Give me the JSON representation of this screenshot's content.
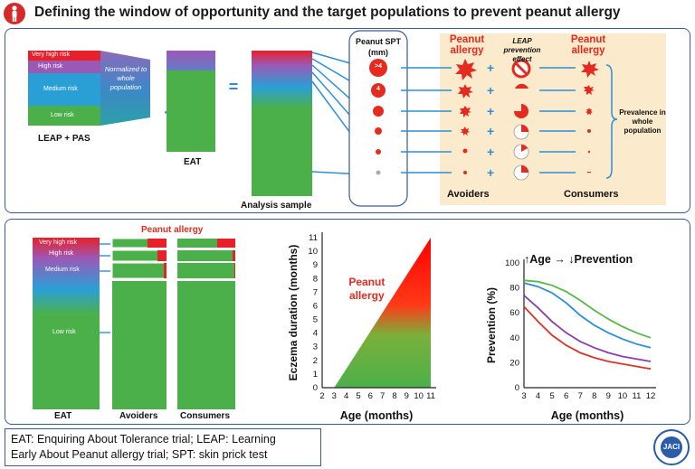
{
  "title": "Defining the window of opportunity and the target populations to prevent peanut allergy",
  "top_panel": {
    "stack_labels": [
      "Very high risk",
      "High risk",
      "Medium risk",
      "Low risk"
    ],
    "normalized": "Normalized to whole population",
    "leap_pas": "LEAP + PAS",
    "eat": "EAT",
    "analysis": "Analysis sample",
    "plus": "+",
    "equals": "=",
    "spt_title": "Peanut SPT (mm)",
    "spt_top": ">4",
    "spt_second": "4",
    "peanut_allergy": "Peanut allergy",
    "leap_effect": "LEAP prevention effect",
    "avoiders": "Avoiders",
    "consumers": "Consumers",
    "prevalence": "Prevalence in whole population"
  },
  "bottom_panel": {
    "peanut_allergy": "Peanut allergy",
    "stack_labels": [
      "Very high risk",
      "High risk",
      "Medium risk",
      "Low risk"
    ],
    "eat": "EAT",
    "avoiders": "Avoiders",
    "consumers": "Consumers",
    "triangle_label": "Peanut allergy",
    "prevention_title": "↑Age → ↓Prevention"
  },
  "chart_data": [
    {
      "type": "area",
      "x": [
        2,
        3,
        4,
        5,
        6,
        7,
        8,
        9,
        10,
        11
      ],
      "xlabel": "Age (months)",
      "ylabel": "Eczema duration (months)",
      "xticks": [
        "2",
        "3",
        "4",
        "5",
        "6",
        "7",
        "8",
        "9",
        "10",
        "11"
      ],
      "yticks": [
        "0",
        "1",
        "2",
        "3",
        "4",
        "5",
        "6",
        "7",
        "8",
        "9",
        "10",
        "11"
      ],
      "xlim": [
        2,
        11
      ],
      "ylim": [
        0,
        11
      ],
      "region": [
        [
          3,
          0
        ],
        [
          11,
          0
        ],
        [
          11,
          11
        ]
      ],
      "region_label": "Peanut allergy",
      "colors": {
        "low": "#4cb04a",
        "high": "#ff0000"
      }
    },
    {
      "type": "line",
      "xlabel": "Age (months)",
      "ylabel": "Prevention (%)",
      "xticks": [
        "3",
        "4",
        "5",
        "6",
        "7",
        "8",
        "9",
        "10",
        "11",
        "12"
      ],
      "yticks": [
        "0",
        "20",
        "40",
        "60",
        "80",
        "100"
      ],
      "xlim": [
        3,
        12
      ],
      "ylim": [
        0,
        100
      ],
      "series": [
        {
          "color": "#58b84a",
          "points": [
            [
              3,
              86
            ],
            [
              4,
              85
            ],
            [
              5,
              82
            ],
            [
              6,
              77
            ],
            [
              7,
              70
            ],
            [
              8,
              62
            ],
            [
              9,
              55
            ],
            [
              10,
              49
            ],
            [
              11,
              44
            ],
            [
              12,
              40
            ]
          ]
        },
        {
          "color": "#2a8fd6",
          "points": [
            [
              3,
              84
            ],
            [
              4,
              81
            ],
            [
              5,
              76
            ],
            [
              6,
              68
            ],
            [
              7,
              58
            ],
            [
              8,
              50
            ],
            [
              9,
              44
            ],
            [
              10,
              39
            ],
            [
              11,
              35
            ],
            [
              12,
              32
            ]
          ]
        },
        {
          "color": "#8a3fa8",
          "points": [
            [
              3,
              74
            ],
            [
              4,
              64
            ],
            [
              5,
              53
            ],
            [
              6,
              44
            ],
            [
              7,
              37
            ],
            [
              8,
              32
            ],
            [
              9,
              28
            ],
            [
              10,
              25
            ],
            [
              11,
              23
            ],
            [
              12,
              21
            ]
          ]
        },
        {
          "color": "#e0302a",
          "points": [
            [
              3,
              65
            ],
            [
              4,
              53
            ],
            [
              5,
              42
            ],
            [
              6,
              34
            ],
            [
              7,
              28
            ],
            [
              8,
              24
            ],
            [
              9,
              21
            ],
            [
              10,
              19
            ],
            [
              11,
              17
            ],
            [
              12,
              15
            ]
          ]
        }
      ]
    }
  ],
  "footer": {
    "line1": "EAT: Enquiring About Tolerance trial; LEAP: Learning",
    "line2": "Early About Peanut allergy trial; SPT: skin prick test"
  },
  "jaci": "JACI",
  "colors": {
    "border": "#3a5a9b",
    "accent": "#e52a1f",
    "arrow": "#2a90d8",
    "tan": "#fbeacb"
  }
}
